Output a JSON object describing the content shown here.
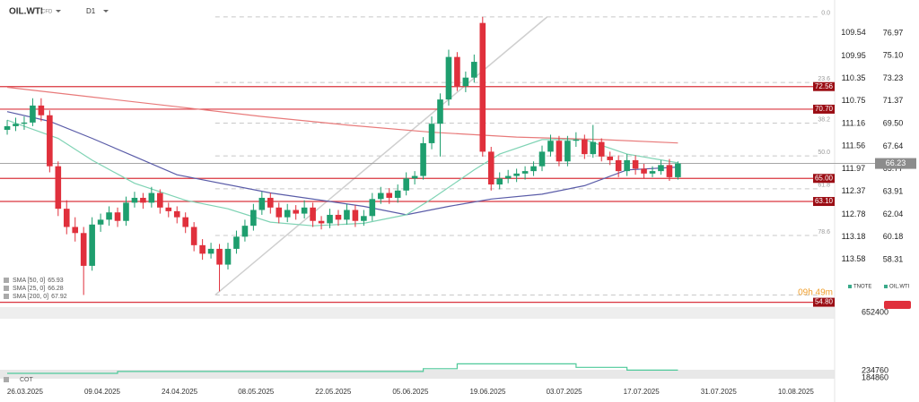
{
  "header": {
    "symbol": "OIL.WTI",
    "kind": "CFD",
    "timeframe": "D1"
  },
  "chart_data": {
    "type": "candlestick",
    "candles": [
      [
        69.0,
        69.8,
        68.6,
        69.3
      ],
      [
        69.3,
        70.0,
        68.9,
        69.5
      ],
      [
        69.5,
        70.1,
        69.0,
        69.6
      ],
      [
        69.6,
        71.6,
        69.3,
        71.0
      ],
      [
        71.0,
        71.6,
        69.7,
        70.2
      ],
      [
        70.2,
        70.6,
        65.5,
        66.0
      ],
      [
        66.0,
        66.4,
        61.9,
        62.5
      ],
      [
        62.5,
        63.2,
        60.4,
        61.0
      ],
      [
        61.0,
        61.8,
        59.8,
        60.5
      ],
      [
        60.5,
        61.0,
        55.4,
        57.8
      ],
      [
        57.8,
        61.8,
        57.4,
        61.2
      ],
      [
        61.2,
        62.1,
        60.6,
        61.6
      ],
      [
        61.6,
        62.7,
        61.1,
        62.2
      ],
      [
        62.2,
        62.6,
        61.0,
        61.5
      ],
      [
        61.5,
        63.5,
        61.1,
        63.0
      ],
      [
        63.0,
        63.9,
        62.6,
        63.4
      ],
      [
        63.4,
        63.8,
        62.5,
        63.0
      ],
      [
        63.0,
        64.3,
        62.6,
        63.8
      ],
      [
        63.8,
        64.1,
        62.1,
        62.6
      ],
      [
        62.6,
        63.0,
        61.8,
        62.3
      ],
      [
        62.3,
        62.7,
        61.3,
        61.8
      ],
      [
        61.8,
        62.2,
        60.5,
        61.0
      ],
      [
        61.0,
        61.4,
        59.0,
        59.5
      ],
      [
        59.5,
        60.0,
        58.3,
        58.8
      ],
      [
        58.8,
        59.7,
        58.4,
        59.2
      ],
      [
        59.2,
        59.6,
        55.7,
        57.9
      ],
      [
        57.9,
        59.7,
        57.5,
        59.2
      ],
      [
        59.2,
        60.7,
        58.8,
        60.2
      ],
      [
        60.2,
        61.6,
        59.8,
        61.1
      ],
      [
        61.1,
        62.9,
        60.7,
        62.4
      ],
      [
        62.4,
        63.9,
        62.0,
        63.4
      ],
      [
        63.4,
        63.8,
        62.1,
        62.6
      ],
      [
        62.6,
        63.0,
        61.3,
        61.8
      ],
      [
        61.8,
        62.9,
        61.4,
        62.4
      ],
      [
        62.4,
        62.8,
        61.6,
        62.1
      ],
      [
        62.1,
        63.2,
        61.7,
        62.6
      ],
      [
        62.6,
        63.0,
        61.0,
        61.5
      ],
      [
        61.5,
        61.9,
        60.8,
        61.3
      ],
      [
        61.3,
        62.5,
        60.9,
        62.0
      ],
      [
        62.0,
        62.4,
        61.1,
        61.6
      ],
      [
        61.6,
        62.9,
        61.2,
        62.4
      ],
      [
        62.4,
        62.8,
        61.0,
        61.5
      ],
      [
        61.5,
        62.4,
        61.1,
        61.9
      ],
      [
        61.9,
        63.8,
        61.5,
        63.3
      ],
      [
        63.3,
        64.3,
        62.9,
        63.8
      ],
      [
        63.8,
        64.2,
        62.9,
        63.4
      ],
      [
        63.4,
        64.5,
        63.0,
        64.0
      ],
      [
        64.0,
        65.5,
        63.6,
        65.0
      ],
      [
        65.0,
        65.6,
        64.5,
        65.2
      ],
      [
        65.2,
        68.4,
        64.9,
        67.9
      ],
      [
        67.9,
        70.1,
        67.4,
        69.5
      ],
      [
        69.5,
        72.0,
        66.8,
        71.5
      ],
      [
        71.5,
        75.6,
        71.0,
        75.0
      ],
      [
        75.0,
        75.4,
        72.2,
        72.6
      ],
      [
        72.6,
        73.8,
        72.1,
        73.3
      ],
      [
        73.3,
        75.2,
        72.9,
        74.6
      ],
      [
        77.8,
        78.3,
        66.8,
        67.2
      ],
      [
        67.2,
        67.6,
        64.0,
        64.5
      ],
      [
        64.5,
        65.5,
        64.1,
        65.0
      ],
      [
        65.0,
        65.7,
        64.6,
        65.2
      ],
      [
        65.2,
        65.8,
        64.7,
        65.4
      ],
      [
        65.4,
        66.0,
        64.9,
        65.6
      ],
      [
        65.6,
        66.4,
        65.2,
        66.0
      ],
      [
        66.0,
        67.7,
        65.6,
        67.2
      ],
      [
        67.2,
        68.6,
        66.8,
        68.1
      ],
      [
        68.1,
        68.5,
        66.0,
        66.4
      ],
      [
        66.4,
        68.5,
        66.0,
        68.1
      ],
      [
        68.1,
        68.8,
        67.6,
        68.2
      ],
      [
        68.2,
        68.6,
        66.6,
        67.0
      ],
      [
        67.0,
        69.4,
        66.7,
        68.0
      ],
      [
        68.0,
        68.3,
        66.4,
        66.8
      ],
      [
        66.8,
        67.2,
        66.1,
        66.5
      ],
      [
        66.5,
        66.9,
        65.1,
        65.6
      ],
      [
        65.6,
        67.0,
        65.2,
        66.5
      ],
      [
        66.5,
        66.9,
        65.3,
        65.8
      ],
      [
        65.8,
        66.2,
        65.0,
        65.4
      ],
      [
        65.4,
        66.0,
        65.1,
        65.6
      ],
      [
        65.6,
        66.5,
        65.3,
        66.1
      ],
      [
        66.1,
        66.6,
        64.8,
        65.1
      ],
      [
        65.1,
        66.4,
        64.9,
        66.23
      ]
    ],
    "up_color": "#1e9e6e",
    "down_color": "#e0303c",
    "ylim": [
      54.8,
      79.33
    ],
    "yticks": [
      76.97,
      {
        "value": 75.1,
        "label": "75.10"
      },
      73.23,
      71.37,
      {
        "value": 69.5,
        "label": "69.50"
      },
      67.64,
      65.77,
      63.91,
      62.04,
      60.18,
      58.31
    ],
    "y2lim": [
      114.35,
      109.03
    ],
    "y2ticks": [
      109.54,
      109.95,
      110.35,
      110.75,
      111.16,
      111.56,
      111.97,
      112.37,
      112.78,
      113.18,
      113.58
    ],
    "xlim": [
      -0.85,
      97.46
    ],
    "xticks": [
      {
        "value": 2.1,
        "label": "26.03.2025"
      },
      {
        "value": 11.2,
        "label": "09.04.2025"
      },
      {
        "value": 20.3,
        "label": "24.04.2025"
      },
      {
        "value": 29.3,
        "label": "08.05.2025"
      },
      {
        "value": 38.4,
        "label": "22.05.2025"
      },
      {
        "value": 47.5,
        "label": "05.06.2025"
      },
      {
        "value": 56.6,
        "label": "19.06.2025"
      },
      {
        "value": 65.6,
        "label": "03.07.2025"
      },
      {
        "value": 74.7,
        "label": "17.07.2025"
      },
      {
        "value": 83.8,
        "label": "31.07.2025"
      },
      {
        "value": 92.9,
        "label": "10.08.2025"
      }
    ],
    "sma": [
      {
        "name": "SMA [50, 0]",
        "value": 65.93,
        "color": "#5a5ca8",
        "x": [
          0,
          5,
          10,
          15,
          20,
          31,
          42,
          47,
          52,
          57,
          63,
          68,
          73,
          79
        ],
        "values": [
          70.5,
          69.7,
          68.3,
          66.8,
          65.3,
          63.8,
          62.7,
          62.0,
          62.7,
          63.3,
          63.7,
          64.4,
          65.7,
          65.93
        ]
      },
      {
        "name": "SMA [25, 0]",
        "value": 66.28,
        "color": "#7fd3b4",
        "x": [
          0,
          6,
          10,
          15,
          21,
          26,
          31,
          36,
          42,
          47,
          50,
          55,
          58,
          63,
          68,
          73,
          79
        ],
        "values": [
          69.8,
          68.3,
          66.5,
          64.6,
          63.2,
          62.5,
          61.4,
          61.1,
          61.3,
          62.0,
          63.3,
          65.7,
          67.0,
          68.2,
          68.2,
          67.0,
          66.28
        ]
      },
      {
        "name": "SMA [200, 0]",
        "value": 67.92,
        "color": "#e87a7a",
        "x": [
          0,
          10,
          20,
          30,
          40,
          50,
          60,
          70,
          79
        ],
        "values": [
          72.5,
          71.7,
          70.9,
          70.1,
          69.4,
          68.8,
          68.4,
          68.2,
          67.92
        ]
      }
    ],
    "levels": [
      72.56,
      {
        "value": 70.7,
        "label": "70.70"
      },
      {
        "value": 65,
        "label": "65.00"
      },
      {
        "value": 63.1,
        "label": "63.10"
      },
      {
        "value": 54.8,
        "label": "54.80"
      }
    ],
    "level_color": "#d9343d",
    "price": 66.23,
    "fib": {
      "high": 78.3,
      "low": 55.4,
      "low_x": 24.5,
      "high_x": 63.6,
      "levels": [
        {
          "value": 0,
          "label": "0.0"
        },
        23.6,
        38.2,
        {
          "value": 50,
          "label": "50.0"
        },
        61.8,
        78.6
      ]
    },
    "timer": "09h 49m",
    "legend": [
      "TNOTE",
      "OIL.WTI"
    ]
  },
  "indicator": {
    "name": "COT",
    "color": "#4fc99a",
    "ylim": [
      165600,
      690800
    ],
    "yticks": [
      652400,
      234760,
      184860
    ],
    "x": [
      0,
      13,
      49,
      53,
      67,
      73,
      79
    ],
    "values": [
      217000,
      230000,
      250000,
      285000,
      260000,
      240000,
      240000
    ]
  }
}
